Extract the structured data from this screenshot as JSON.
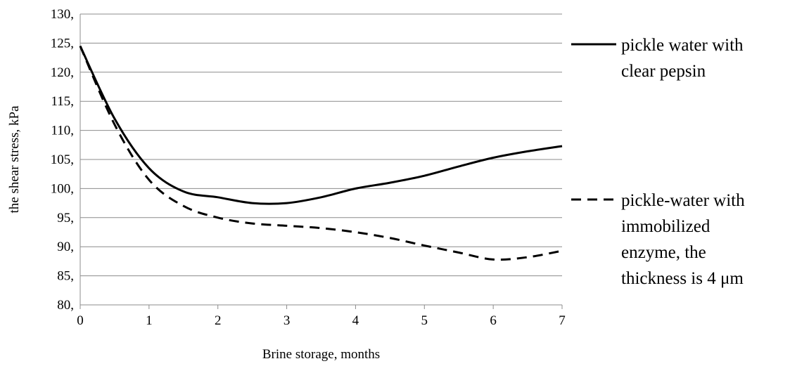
{
  "chart_data": {
    "type": "line",
    "title": "",
    "xlabel": "Brine storage, months",
    "ylabel": "the shear stress, kPa",
    "xlim": [
      0,
      7
    ],
    "ylim": [
      80,
      130
    ],
    "x_ticks": [
      "0",
      "1",
      "2",
      "3",
      "4",
      "5",
      "6",
      "7"
    ],
    "y_ticks": [
      "80,",
      "85,",
      "90,",
      "95,",
      "100,",
      "105,",
      "110,",
      "115,",
      "120,",
      "125,",
      "130,"
    ],
    "grid": "horizontal",
    "legend_position": "right",
    "series": [
      {
        "name": "pickle water with clear pepsin",
        "legend_lines": [
          "pickle water with",
          "clear pepsin"
        ],
        "style": "solid",
        "color": "#000000",
        "x": [
          0,
          0.5,
          1,
          1.5,
          2,
          2.5,
          3,
          3.5,
          4,
          4.5,
          5,
          5.5,
          6,
          6.5,
          7
        ],
        "y": [
          124.5,
          112,
          103.5,
          99.5,
          98.5,
          97.5,
          97.5,
          98.5,
          100,
          101,
          102.2,
          103.8,
          105.3,
          106.4,
          107.3
        ]
      },
      {
        "name": "pickle-water with immobilized enzyme, the thickness is 4 μm",
        "legend_lines": [
          "pickle-water with",
          "immobilized",
          "enzyme, the",
          "thickness is 4 μm"
        ],
        "style": "dashed",
        "color": "#000000",
        "x": [
          0,
          0.5,
          1,
          1.5,
          2,
          2.5,
          3,
          3.5,
          4,
          4.5,
          5,
          5.5,
          6,
          6.5,
          7
        ],
        "y": [
          124.5,
          111,
          101.5,
          97,
          95,
          94,
          93.6,
          93.2,
          92.5,
          91.5,
          90.2,
          89,
          87.8,
          88.2,
          89.3
        ]
      }
    ]
  }
}
